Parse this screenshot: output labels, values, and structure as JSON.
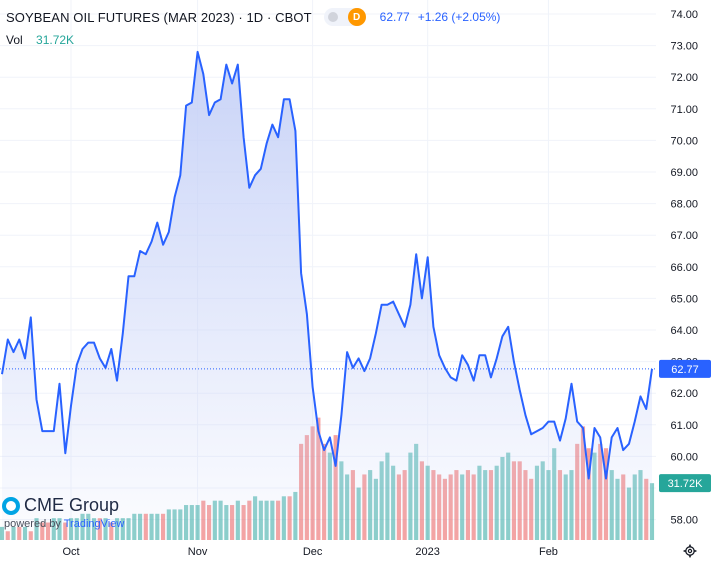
{
  "header": {
    "title": "SOYBEAN OIL FUTURES (MAR 2023) · 1D · CBOT",
    "badge": "D",
    "last": "62.77",
    "change": "+1.26 (+2.05%)"
  },
  "volume": {
    "label": "Vol",
    "value": "31.72K"
  },
  "logo": {
    "brand": "CME Group",
    "powered_by": "powered by",
    "platform": "TradingView"
  },
  "chart_data": {
    "type": "area",
    "y_ticks": [
      58,
      59,
      60,
      61,
      62,
      63,
      64,
      65,
      66,
      67,
      68,
      69,
      70,
      71,
      72,
      73,
      74
    ],
    "y_tick_labels": [
      "58.00",
      "59.00",
      "60.00",
      "61.00",
      "62.00",
      "63.00",
      "64.00",
      "65.00",
      "66.00",
      "67.00",
      "68.00",
      "69.00",
      "70.00",
      "71.00",
      "72.00",
      "73.00",
      "74.00"
    ],
    "ylim": [
      57.6,
      74.3
    ],
    "x_labels": [
      {
        "index": 12,
        "label": "Oct"
      },
      {
        "index": 34,
        "label": "Nov"
      },
      {
        "index": 54,
        "label": "Dec"
      },
      {
        "index": 74,
        "label": "2023"
      },
      {
        "index": 95,
        "label": "Feb"
      }
    ],
    "close": [
      62.6,
      63.7,
      63.3,
      63.7,
      63.1,
      64.4,
      61.8,
      60.8,
      60.8,
      60.8,
      62.3,
      60.1,
      61.6,
      62.9,
      63.4,
      63.6,
      63.6,
      63.1,
      62.8,
      63.4,
      62.4,
      63.9,
      65.7,
      65.7,
      66.5,
      66.4,
      66.8,
      67.4,
      66.7,
      67.1,
      68.2,
      68.9,
      71.1,
      71.2,
      72.8,
      72.1,
      70.8,
      71.2,
      71.3,
      72.4,
      71.8,
      72.4,
      70.1,
      68.5,
      68.9,
      69.1,
      69.9,
      70.5,
      70.1,
      71.3,
      71.3,
      70.3,
      65.8,
      64.5,
      62.2,
      60.8,
      60.2,
      60.6,
      59.7,
      61.3,
      63.3,
      62.8,
      63.1,
      62.7,
      63.1,
      63.9,
      64.8,
      64.8,
      64.9,
      64.5,
      64.1,
      64.8,
      66.4,
      65.0,
      66.3,
      64.1,
      63.2,
      62.8,
      62.5,
      62.4,
      63.2,
      62.9,
      62.4,
      63.2,
      63.2,
      62.5,
      63.1,
      63.8,
      64.1,
      63.0,
      62.1,
      61.3,
      60.7,
      60.8,
      60.9,
      61.1,
      61.1,
      60.5,
      61.2,
      62.3,
      61.1,
      60.9,
      59.3,
      60.9,
      60.6,
      59.3,
      60.6,
      60.9,
      60.2,
      60.4,
      61.1,
      61.9,
      61.5,
      62.77
    ],
    "volume": [
      3,
      2,
      3,
      3,
      3,
      2,
      5,
      4,
      4,
      5,
      5,
      4,
      5,
      5,
      6,
      6,
      5,
      5,
      5,
      4,
      5,
      5,
      5,
      6,
      6,
      6,
      6,
      6,
      6,
      7,
      7,
      7,
      8,
      8,
      8,
      9,
      8,
      9,
      9,
      8,
      8,
      9,
      8,
      9,
      10,
      9,
      9,
      9,
      9,
      10,
      10,
      11,
      22,
      24,
      26,
      28,
      22,
      20,
      24,
      18,
      15,
      16,
      12,
      15,
      16,
      14,
      18,
      20,
      17,
      15,
      16,
      20,
      22,
      18,
      17,
      16,
      15,
      14,
      15,
      16,
      15,
      16,
      15,
      17,
      16,
      16,
      17,
      19,
      20,
      18,
      18,
      16,
      14,
      17,
      18,
      16,
      21,
      16,
      15,
      16,
      22,
      26,
      21,
      20,
      22,
      21,
      16,
      14,
      15,
      12,
      15,
      16,
      14,
      13
    ],
    "volume_up": [
      1,
      0,
      1,
      0,
      1,
      0,
      1,
      0,
      0,
      1,
      1,
      0,
      1,
      1,
      1,
      1,
      1,
      0,
      1,
      0,
      1,
      1,
      1,
      1,
      1,
      0,
      1,
      1,
      0,
      1,
      1,
      1,
      1,
      1,
      1,
      0,
      0,
      1,
      1,
      1,
      0,
      1,
      0,
      0,
      1,
      1,
      1,
      1,
      0,
      1,
      0,
      1,
      0,
      0,
      0,
      0,
      0,
      1,
      0,
      1,
      1,
      0,
      1,
      0,
      1,
      1,
      1,
      1,
      1,
      0,
      0,
      1,
      1,
      0,
      1,
      0,
      0,
      0,
      0,
      0,
      1,
      0,
      0,
      1,
      1,
      0,
      1,
      1,
      1,
      0,
      0,
      0,
      0,
      1,
      1,
      1,
      1,
      0,
      1,
      1,
      0,
      0,
      0,
      1,
      0,
      0,
      1,
      1,
      0,
      1,
      1,
      1,
      0,
      1
    ],
    "volume_scale_max": 27,
    "last_value_label": "62.77",
    "last_volume_label": "31.72K",
    "colors": {
      "line": "#2962ff",
      "fill_top": "#c6d1f7",
      "vol_up": "#26a69a",
      "vol_down": "#ef5350"
    }
  }
}
